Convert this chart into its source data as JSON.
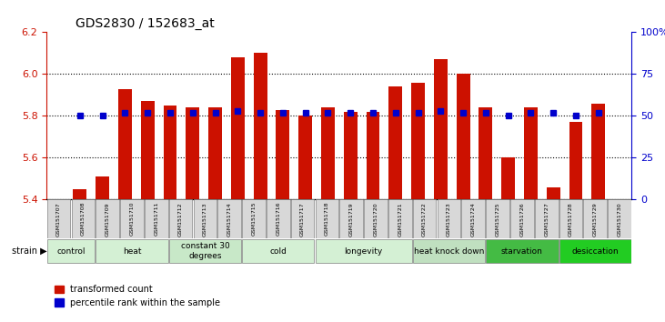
{
  "title": "GDS2830 / 152683_at",
  "samples": [
    "GSM151707",
    "GSM151708",
    "GSM151709",
    "GSM151710",
    "GSM151711",
    "GSM151712",
    "GSM151713",
    "GSM151714",
    "GSM151715",
    "GSM151716",
    "GSM151717",
    "GSM151718",
    "GSM151719",
    "GSM151720",
    "GSM151721",
    "GSM151722",
    "GSM151723",
    "GSM151724",
    "GSM151725",
    "GSM151726",
    "GSM151727",
    "GSM151728",
    "GSM151729",
    "GSM151730"
  ],
  "bar_values": [
    5.45,
    5.51,
    5.93,
    5.87,
    5.85,
    5.84,
    5.84,
    6.08,
    6.1,
    5.83,
    5.8,
    5.84,
    5.82,
    5.82,
    5.94,
    5.96,
    6.07,
    6.0,
    5.84,
    5.6,
    5.84,
    5.46,
    5.77,
    5.86
  ],
  "percentile_values": [
    50,
    50,
    52,
    52,
    52,
    52,
    52,
    53,
    52,
    52,
    52,
    52,
    52,
    52,
    52,
    52,
    53,
    52,
    52,
    50,
    52,
    52,
    50,
    52
  ],
  "bar_color": "#cc1100",
  "percentile_color": "#0000cc",
  "ylim_left": [
    5.4,
    6.2
  ],
  "ylim_right": [
    0,
    100
  ],
  "yticks_left": [
    5.4,
    5.6,
    5.8,
    6.0,
    6.2
  ],
  "yticks_right": [
    0,
    25,
    50,
    75,
    100
  ],
  "ytick_labels_right": [
    "0",
    "25",
    "50",
    "75",
    "100%"
  ],
  "groups": [
    {
      "label": "control",
      "start": 0,
      "end": 2,
      "color": "#d4f0d4"
    },
    {
      "label": "heat",
      "start": 2,
      "end": 5,
      "color": "#d4f0d4"
    },
    {
      "label": "constant 30\ndegrees",
      "start": 5,
      "end": 8,
      "color": "#c8e8c8"
    },
    {
      "label": "cold",
      "start": 8,
      "end": 11,
      "color": "#d4f0d4"
    },
    {
      "label": "longevity",
      "start": 11,
      "end": 15,
      "color": "#d4f0d4"
    },
    {
      "label": "heat knock down",
      "start": 15,
      "end": 18,
      "color": "#c0e0c0"
    },
    {
      "label": "starvation",
      "start": 18,
      "end": 21,
      "color": "#44bb44"
    },
    {
      "label": "desiccation",
      "start": 21,
      "end": 24,
      "color": "#22cc22"
    }
  ],
  "legend_items": [
    {
      "label": "transformed count",
      "color": "#cc1100",
      "marker": "s"
    },
    {
      "label": "percentile rank within the sample",
      "color": "#0000cc",
      "marker": "s"
    }
  ],
  "bar_width": 0.6
}
